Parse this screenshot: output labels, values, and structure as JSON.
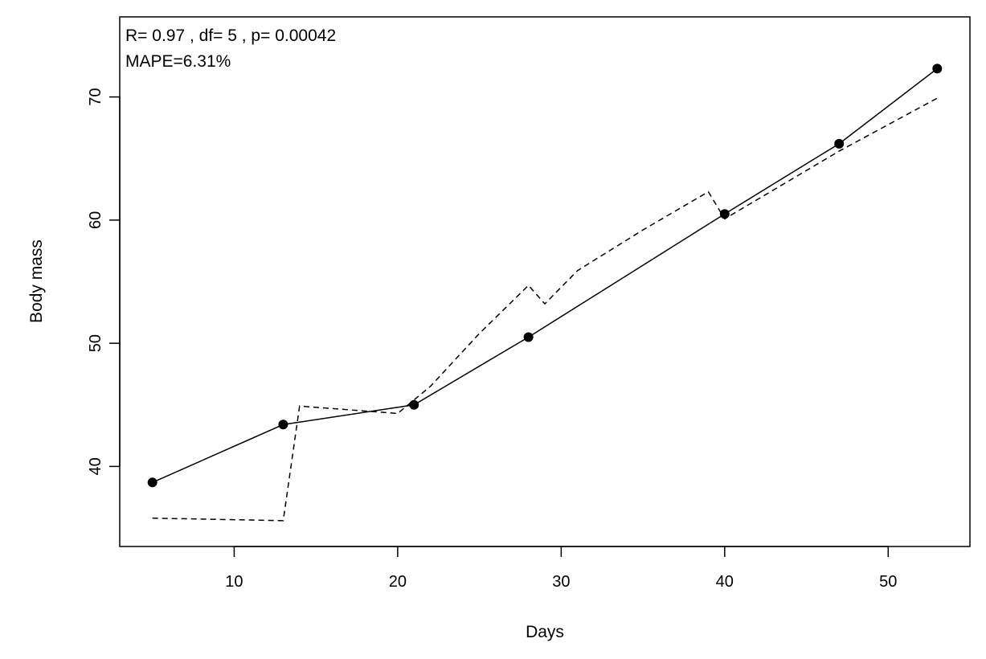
{
  "chart_data": {
    "type": "line",
    "xlabel": "Days",
    "ylabel": "Body mass",
    "xlim": [
      3,
      55
    ],
    "ylim": [
      33.5,
      76.5
    ],
    "x_ticks": [
      10,
      20,
      30,
      40,
      50
    ],
    "y_ticks": [
      40,
      50,
      60,
      70
    ],
    "grid": false,
    "annotations": [
      "R= 0.97 , df= 5 , p= 0.00042",
      "MAPE=6.31%"
    ],
    "series": [
      {
        "style": "solid-with-points",
        "x": [
          5,
          13,
          21,
          28,
          40,
          47,
          53
        ],
        "y": [
          38.7,
          43.4,
          45.0,
          50.5,
          60.5,
          66.2,
          72.3
        ]
      },
      {
        "style": "dashed",
        "x": [
          5,
          13,
          14,
          20,
          22,
          25,
          28,
          29,
          31,
          35,
          39,
          40,
          47,
          53
        ],
        "y": [
          35.8,
          35.6,
          44.9,
          44.3,
          46.5,
          50.8,
          54.7,
          53.2,
          55.9,
          59.2,
          62.3,
          60.1,
          65.6,
          69.9
        ]
      }
    ]
  }
}
